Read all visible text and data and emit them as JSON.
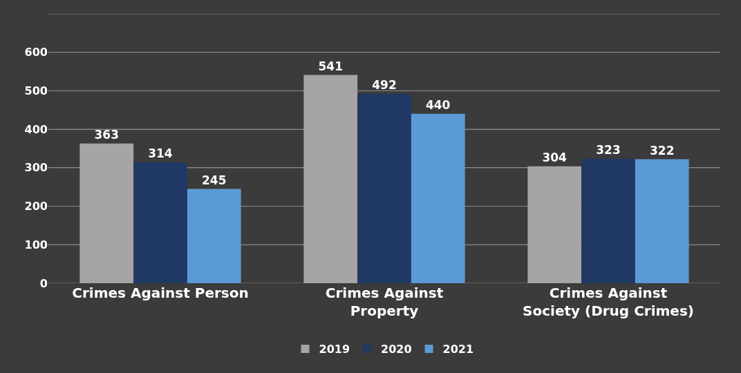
{
  "chart_data": {
    "type": "bar",
    "categories": [
      "Crimes Against Person",
      "Crimes Against Property",
      "Crimes Against Society (Drug Crimes)"
    ],
    "series": [
      {
        "name": "2019",
        "color": "#a5a5a5",
        "values": [
          363,
          541,
          304
        ]
      },
      {
        "name": "2020",
        "color": "#203864",
        "values": [
          314,
          492,
          323
        ]
      },
      {
        "name": "2021",
        "color": "#5b9bd5",
        "values": [
          245,
          440,
          322
        ]
      }
    ],
    "ylim": [
      0,
      700
    ],
    "yticks": [
      0,
      100,
      200,
      300,
      400,
      500,
      600,
      {
        "value": 700,
        "label": null
      }
    ],
    "grid": "y",
    "legend": "bottom",
    "data_labels": true
  }
}
